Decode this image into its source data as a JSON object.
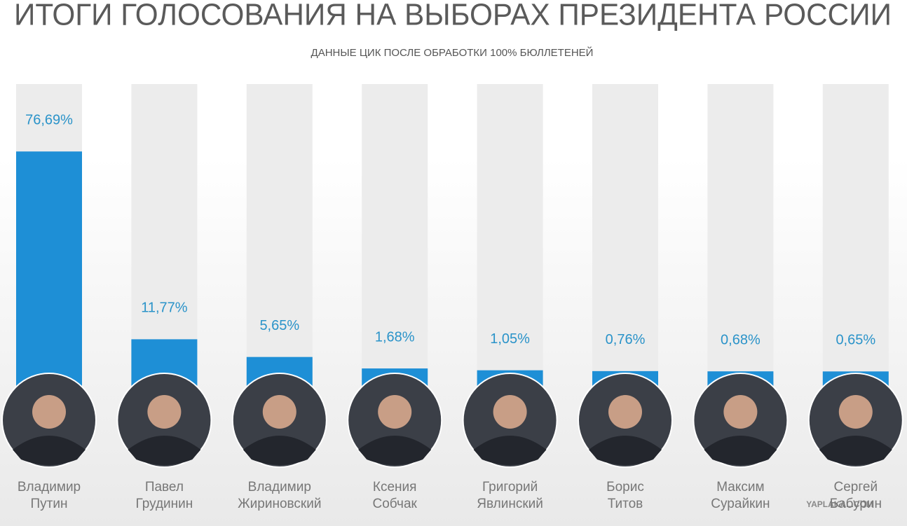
{
  "chart_data": {
    "type": "bar",
    "title": "ИТОГИ ГОЛОСОВАНИЯ НА ВЫБОРАХ ПРЕЗИДЕНТА РОССИИ",
    "subtitle": "ДАННЫЕ ЦИК ПОСЛЕ ОБРАБОТКИ 100% БЮЛЛЕТЕНЕЙ",
    "categories": [
      "Владимир\nПутин",
      "Павел\nГрудинин",
      "Владимир\nЖириновский",
      "Ксения\nСобчак",
      "Григорий\nЯвлинский",
      "Борис\nТитов",
      "Максим\nСурайкин",
      "Сергей\nБабурин"
    ],
    "values": [
      76.69,
      11.77,
      5.65,
      1.68,
      1.05,
      0.76,
      0.68,
      0.65
    ],
    "value_labels": [
      "76,69%",
      "11,77%",
      "5,65%",
      "1,68%",
      "1,05%",
      "0,76%",
      "0,68%",
      "0,65%"
    ],
    "color": "#1e8fd6",
    "ylim": [
      0,
      100
    ],
    "watermark": "YAPLAKAL.COM"
  }
}
